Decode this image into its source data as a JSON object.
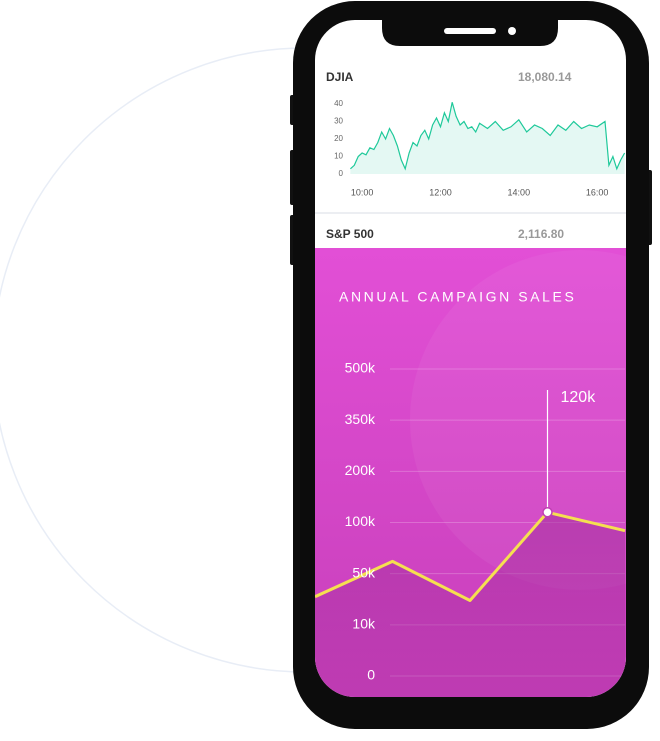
{
  "tickers": [
    {
      "name": "DJIA",
      "price": "18,080.14"
    },
    {
      "name": "S&P 500",
      "price": "2,116.80"
    }
  ],
  "chart_data": [
    {
      "type": "area",
      "color": "#1fc99a",
      "x": [
        9.7,
        9.8,
        9.9,
        10.0,
        10.1,
        10.2,
        10.3,
        10.4,
        10.5,
        10.6,
        10.7,
        10.8,
        10.9,
        11.0,
        11.1,
        11.2,
        11.3,
        11.4,
        11.5,
        11.6,
        11.7,
        11.8,
        11.9,
        12.0,
        12.1,
        12.2,
        12.3,
        12.4,
        12.5,
        12.6,
        12.7,
        12.8,
        12.9,
        13.0,
        13.2,
        13.4,
        13.6,
        13.8,
        14.0,
        14.2,
        14.4,
        14.6,
        14.8,
        15.0,
        15.2,
        15.4,
        15.6,
        15.8,
        16.0,
        16.2,
        16.3,
        16.4,
        16.5,
        16.6,
        16.7
      ],
      "values": [
        3,
        5,
        10,
        12,
        11,
        15,
        14,
        18,
        24,
        20,
        26,
        22,
        16,
        8,
        3,
        12,
        18,
        16,
        22,
        25,
        20,
        28,
        32,
        27,
        35,
        30,
        41,
        33,
        28,
        30,
        26,
        27,
        24,
        29,
        26,
        30,
        25,
        27,
        31,
        24,
        28,
        26,
        22,
        28,
        25,
        30,
        26,
        28,
        27,
        30,
        5,
        10,
        3,
        8,
        12
      ],
      "xlim": [
        9.64,
        16.71
      ],
      "xticks": [
        {
          "value": 10,
          "label": "10:00"
        },
        {
          "value": 12,
          "label": "12:00"
        },
        {
          "value": 14,
          "label": "14:00"
        },
        {
          "value": 16,
          "label": "16:00"
        }
      ],
      "ylim": [
        0,
        40
      ],
      "yticks": [
        0,
        10,
        20,
        30,
        40
      ]
    },
    {
      "type": "line",
      "title": "ANNUAL CAMPAIGN SALES",
      "color": "#f5e050",
      "categories": [
        null,
        null,
        null,
        null,
        null
      ],
      "values": [
        32000,
        62000,
        29000,
        120000,
        92000
      ],
      "value_labels": [
        null,
        null,
        null,
        "120k",
        null
      ],
      "ylim": [
        0,
        500000
      ],
      "yticks": [
        {
          "value": 0,
          "label": "0"
        },
        {
          "value": 10000,
          "label": "10k"
        },
        {
          "value": 50000,
          "label": "50k"
        },
        {
          "value": 100000,
          "label": "100k"
        },
        {
          "value": 200000,
          "label": "200k"
        },
        {
          "value": 350000,
          "label": "350k"
        },
        {
          "value": 500000,
          "label": "500k"
        }
      ],
      "grid": true
    }
  ]
}
